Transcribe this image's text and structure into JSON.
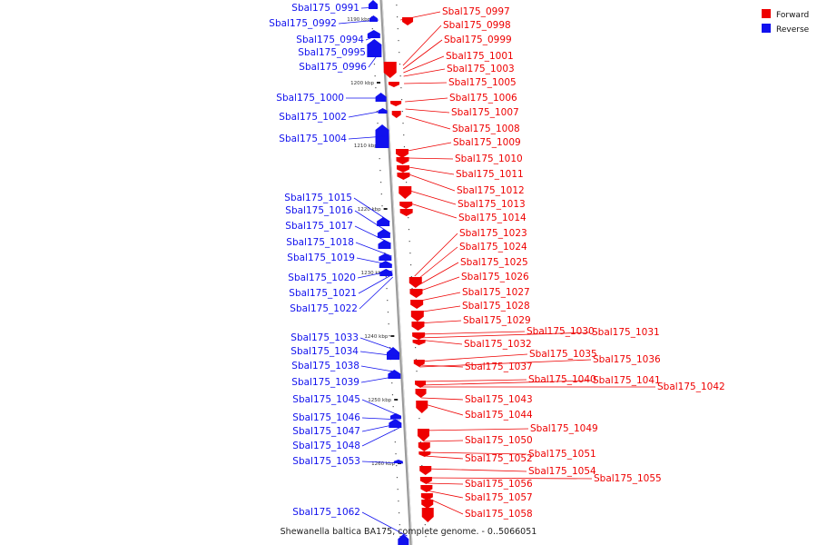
{
  "caption": "Shewanella baltica BA175, complete genome. - 0..5066051",
  "colors": {
    "forward": "#ee0000",
    "reverse": "#1111ee",
    "backbone": "#999999"
  },
  "legend": [
    {
      "label": "Forward",
      "color": "#ee0000"
    },
    {
      "label": "Reverse",
      "color": "#1111ee"
    }
  ],
  "ticks": [
    "1190 kbp",
    "1200 kbp",
    "1210 kbp",
    "1220 kbp",
    "1230 kbp",
    "1240 kbp",
    "1250 kbp",
    "1260 kbp"
  ],
  "reverse_genes": [
    "Sbal175_0991",
    "Sbal175_0992",
    "Sbal175_0994",
    "Sbal175_0995",
    "Sbal175_0996",
    "Sbal175_1000",
    "Sbal175_1002",
    "Sbal175_1004",
    "Sbal175_1015",
    "Sbal175_1016",
    "Sbal175_1017",
    "Sbal175_1018",
    "Sbal175_1019",
    "Sbal175_1020",
    "Sbal175_1021",
    "Sbal175_1022",
    "Sbal175_1033",
    "Sbal175_1034",
    "Sbal175_1038",
    "Sbal175_1039",
    "Sbal175_1045",
    "Sbal175_1046",
    "Sbal175_1047",
    "Sbal175_1048",
    "Sbal175_1053",
    "Sbal175_1062"
  ],
  "forward_genes": [
    "Sbal175_0997",
    "Sbal175_0998",
    "Sbal175_0999",
    "Sbal175_1001",
    "Sbal175_1003",
    "Sbal175_1005",
    "Sbal175_1006",
    "Sbal175_1007",
    "Sbal175_1008",
    "Sbal175_1009",
    "Sbal175_1010",
    "Sbal175_1011",
    "Sbal175_1012",
    "Sbal175_1013",
    "Sbal175_1014",
    "Sbal175_1023",
    "Sbal175_1024",
    "Sbal175_1025",
    "Sbal175_1026",
    "Sbal175_1027",
    "Sbal175_1028",
    "Sbal175_1029",
    "Sbal175_1030",
    "Sbal175_1031",
    "Sbal175_1032",
    "Sbal175_1035",
    "Sbal175_1036",
    "Sbal175_1037",
    "Sbal175_1040",
    "Sbal175_1041",
    "Sbal175_1042",
    "Sbal175_1043",
    "Sbal175_1044",
    "Sbal175_1049",
    "Sbal175_1050",
    "Sbal175_1051",
    "Sbal175_1052",
    "Sbal175_1054",
    "Sbal175_1055",
    "Sbal175_1056",
    "Sbal175_1057",
    "Sbal175_1058"
  ]
}
